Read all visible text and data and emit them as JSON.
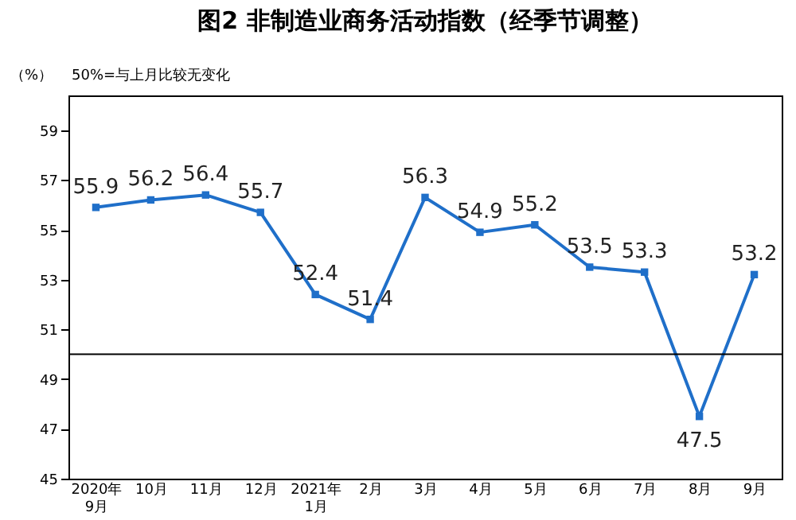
{
  "chart_data": {
    "type": "line",
    "title": "图2 非制造业商务活动指数（经季节调整）",
    "ylabel": "（%）",
    "categories": [
      "2020年\n9月",
      "10月",
      "11月",
      "12月",
      "2021年\n1月",
      "2月",
      "3月",
      "4月",
      "5月",
      "6月",
      "7月",
      "8月",
      "9月"
    ],
    "series": [
      {
        "color": "#1f6fc9",
        "values": [
          55.9,
          56.2,
          56.4,
          55.7,
          52.4,
          51.4,
          56.3,
          54.9,
          55.2,
          53.5,
          53.3,
          47.5,
          53.2
        ]
      }
    ],
    "ylim": [
      45,
      60.4
    ],
    "yticks": [
      45,
      47,
      49,
      51,
      53,
      55,
      57,
      59
    ],
    "ref_lines": [
      {
        "axis": "y",
        "value": 50,
        "label": "50%=与上月比较无变化",
        "color": "#000000"
      }
    ],
    "data_labels": true,
    "marker": "square",
    "line_style": "solid",
    "grid": false
  }
}
